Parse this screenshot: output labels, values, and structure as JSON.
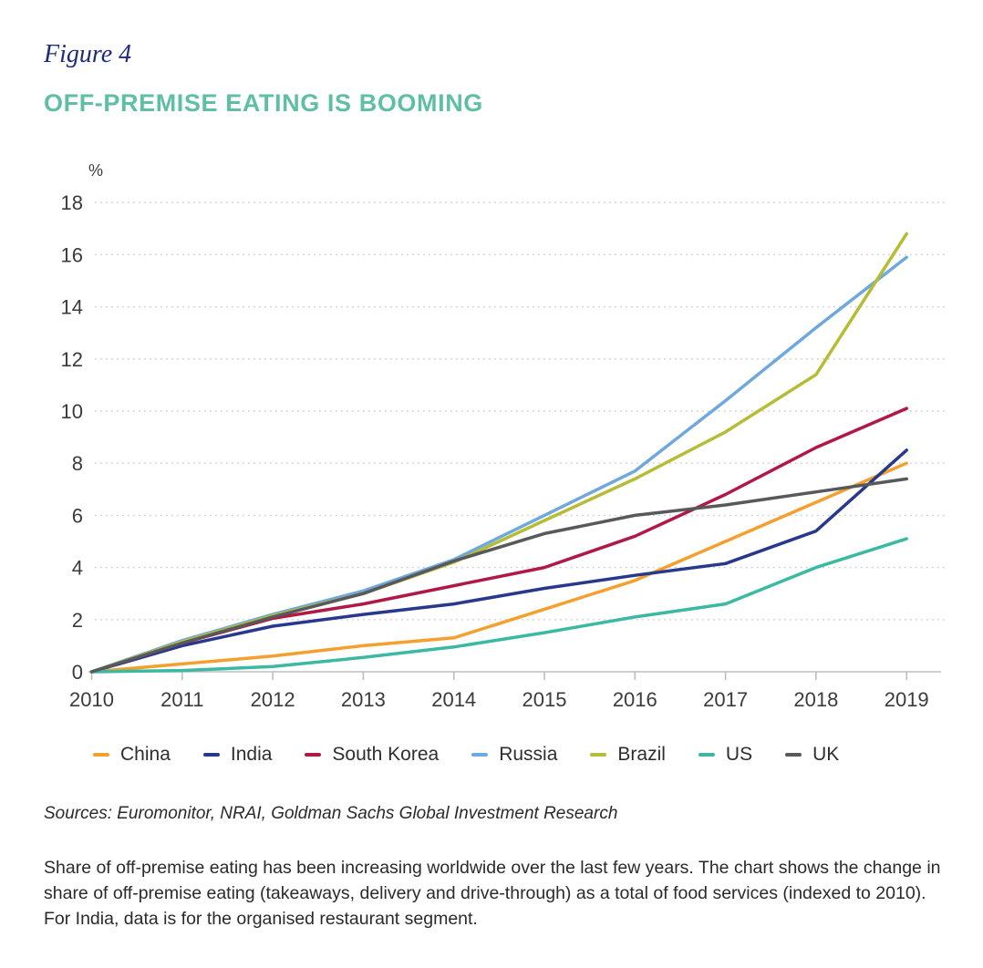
{
  "figure_label": "Figure 4",
  "title": "OFF-PREMISE EATING IS BOOMING",
  "sources": "Sources: Euromonitor, NRAI, Goldman Sachs Global Investment Research",
  "caption": "Share of off-premise eating has been increasing worldwide over the last few years. The chart shows the change in share of off-premise eating (takeaways, delivery and drive-through) as a total of food services (indexed to 2010). For India, data is for the organised restaurant segment.",
  "colors": {
    "figure_label": "#1f2b7b",
    "title": "#5ebfa4",
    "axis_text": "#3b3b3b",
    "axis_line": "#bdbdbd",
    "gridline": "#c9c9c9",
    "legend_text": "#2e2e2e",
    "background": "#ffffff"
  },
  "chart_data": {
    "type": "line",
    "title": "OFF-PREMISE EATING IS BOOMING",
    "unit_label": "%",
    "xlabel": "",
    "ylabel": "%",
    "x": [
      2010,
      2011,
      2012,
      2013,
      2014,
      2015,
      2016,
      2017,
      2018,
      2019
    ],
    "series": [
      {
        "name": "China",
        "color": "#F5A02E",
        "values": [
          0,
          0.3,
          0.6,
          1.0,
          1.3,
          2.4,
          3.5,
          5.0,
          6.5,
          8.0
        ]
      },
      {
        "name": "India",
        "color": "#28388C",
        "values": [
          0,
          1.0,
          1.75,
          2.2,
          2.6,
          3.2,
          3.7,
          4.15,
          5.4,
          8.5
        ]
      },
      {
        "name": "South Korea",
        "color": "#B01945",
        "values": [
          0,
          1.1,
          2.05,
          2.6,
          3.3,
          4.0,
          5.2,
          6.8,
          8.6,
          10.1
        ]
      },
      {
        "name": "Russia",
        "color": "#6FA8DC",
        "values": [
          0,
          1.2,
          2.2,
          3.1,
          4.3,
          6.0,
          7.7,
          10.4,
          13.2,
          15.9
        ]
      },
      {
        "name": "Brazil",
        "color": "#B4BD35",
        "values": [
          0,
          1.15,
          2.15,
          3.0,
          4.2,
          5.8,
          7.4,
          9.2,
          11.4,
          16.8
        ]
      },
      {
        "name": "US",
        "color": "#3BB9A2",
        "values": [
          0,
          0.05,
          0.2,
          0.55,
          0.95,
          1.5,
          2.1,
          2.6,
          4.0,
          5.1
        ]
      },
      {
        "name": "UK",
        "color": "#58595B",
        "values": [
          0,
          1.1,
          2.1,
          3.0,
          4.25,
          5.3,
          6.0,
          6.4,
          6.9,
          7.4
        ]
      }
    ],
    "ylim": [
      0,
      18
    ],
    "ytick_step": 2,
    "yticks": [
      0,
      2,
      4,
      6,
      8,
      10,
      12,
      14,
      16,
      18
    ],
    "grid": "dotted-horizontal",
    "legend_position": "bottom"
  }
}
